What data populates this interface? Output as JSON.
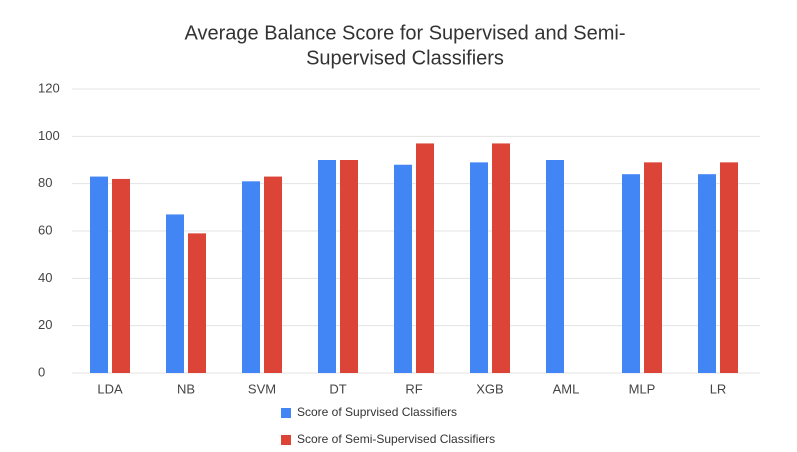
{
  "chart_data": {
    "type": "bar",
    "title": [
      "Average Balance Score for Supervised and Semi-",
      "Supervised Classifiers"
    ],
    "categories": [
      "LDA",
      "NB",
      "SVM",
      "DT",
      "RF",
      "XGB",
      "AML",
      "MLP",
      "LR"
    ],
    "series": [
      {
        "name": "Score of Suprvised Classifiers",
        "color": "#4285f4",
        "values": [
          83,
          67,
          81,
          90,
          88,
          89,
          90,
          84,
          84
        ]
      },
      {
        "name": "Score of Semi-Supervised Classifiers",
        "color": "#db4437",
        "values": [
          82,
          59,
          83,
          90,
          97,
          97,
          null,
          89,
          89
        ]
      }
    ],
    "ylim": [
      0,
      120
    ],
    "yticks": [
      0,
      20,
      40,
      60,
      80,
      100,
      120
    ],
    "grid": true,
    "legend": "bottom"
  }
}
